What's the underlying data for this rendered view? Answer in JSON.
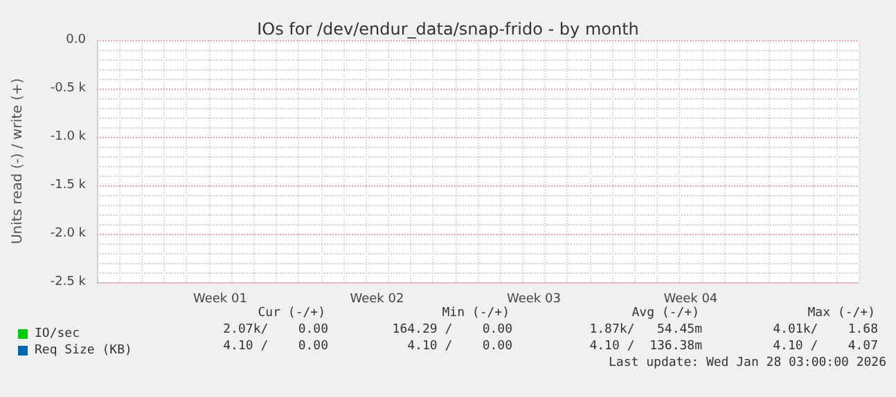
{
  "chart_data": {
    "type": "line",
    "title": "IOs for /dev/endur_data/snap-frido - by month",
    "ylabel": "Units read (-) / write (+)",
    "categories": [
      null,
      null,
      null,
      null,
      null,
      "Week 01",
      null,
      null,
      null,
      null,
      null,
      null,
      "Week 02",
      null,
      null,
      null,
      null,
      null,
      null,
      "Week 03",
      null,
      null,
      null,
      null,
      null,
      null,
      "Week 04",
      null,
      null,
      null,
      null,
      null,
      null,
      null
    ],
    "series": [
      {
        "name": "IO/sec",
        "color": "#00cc00",
        "values": [
          null,
          null,
          null,
          null,
          null,
          null,
          null,
          null,
          null,
          null,
          null,
          null,
          null,
          null,
          null,
          null,
          null,
          null,
          null,
          null,
          null,
          null,
          null,
          null,
          null,
          null,
          null,
          null,
          null,
          null,
          null,
          null,
          null,
          null
        ]
      },
      {
        "name": "Req Size (KB)",
        "color": "#0066b3",
        "values": [
          null,
          null,
          null,
          null,
          null,
          null,
          null,
          null,
          null,
          null,
          null,
          null,
          null,
          null,
          null,
          null,
          null,
          null,
          null,
          null,
          null,
          null,
          null,
          null,
          null,
          null,
          null,
          null,
          null,
          null,
          null,
          null,
          null,
          null
        ]
      }
    ],
    "ylim": [
      -2500,
      0
    ],
    "yticks": [
      {
        "value": -2500,
        "label": "-2.5 k"
      },
      {
        "value": -2000,
        "label": "-2.0 k"
      },
      {
        "value": -1500,
        "label": "-1.5 k"
      },
      {
        "value": -1000,
        "label": "-1.0 k"
      },
      {
        "value": -500,
        "label": "-0.5 k"
      },
      {
        "value": 0,
        "label": "0.0"
      }
    ],
    "grid": true,
    "legend": "bottom left",
    "annotations": [
      "Cur (-/+)",
      "Min (-/+)",
      "Avg (-/+)",
      "Max (-/+)",
      "2.07k/    0.00",
      "164.29 /    0.00",
      "1.87k/   54.45m",
      "4.01k/    1.68",
      "4.10 /    0.00",
      "4.10 /    0.00",
      "4.10 /  136.38m",
      "4.10 /    4.07",
      "Last update: Wed Jan 28 03:00:00 2026"
    ]
  }
}
